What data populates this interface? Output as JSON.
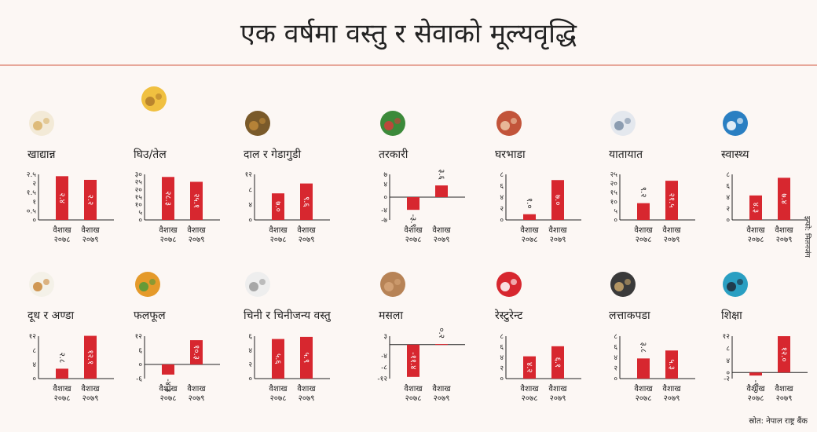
{
  "title": "एक वर्षमा वस्तु र सेवाको मूल्यवृद्धि",
  "source": "स्रोत: नेपाल राष्ट्र बैंक",
  "credit": "इन्फो: मिलनजंग",
  "colors": {
    "bar": "#d7272f",
    "axis": "#222222",
    "panel": "#fcf7f4",
    "rule": "#e7a79a"
  },
  "chart_data": [
    {
      "type": "bar",
      "title": "खाद्यान्न",
      "icon": "grain-icon",
      "categories": [
        [
          "वैशाख",
          "२०७८"
        ],
        [
          "वैशाख",
          "२०७९"
        ]
      ],
      "values": [
        2.4,
        2.2
      ],
      "labels": [
        "२.४",
        "२.२"
      ],
      "ylim": [
        0,
        2.5
      ],
      "ticks": [
        [
          "२.५",
          2.5
        ],
        [
          "२",
          2
        ],
        [
          "१.५",
          1.5
        ],
        [
          "१",
          1
        ],
        [
          "०.५",
          0.5
        ],
        [
          "०",
          0
        ]
      ]
    },
    {
      "type": "bar",
      "title": "घिउ/तेल",
      "icon": "oil-ghee-icon",
      "categories": [
        [
          "वैशाख",
          "२०७८"
        ],
        [
          "वैशाख",
          "२०७९"
        ]
      ],
      "values": [
        28.3,
        25.1
      ],
      "labels": [
        "२८.३",
        "२५.१"
      ],
      "ylim": [
        0,
        30
      ],
      "ticks": [
        [
          "३०",
          30
        ],
        [
          "२५",
          25
        ],
        [
          "२०",
          20
        ],
        [
          "१५",
          15
        ],
        [
          "१०",
          10
        ],
        [
          "५",
          5
        ],
        [
          "०",
          0
        ]
      ]
    },
    {
      "type": "bar",
      "title": "दाल र गेडागुडी",
      "icon": "lentils-icon",
      "categories": [
        [
          "वैशाख",
          "२०७८"
        ],
        [
          "वैशाख",
          "२०७९"
        ]
      ],
      "values": [
        7.0,
        9.6
      ],
      "labels": [
        "७.०",
        "९.६"
      ],
      "ylim": [
        0,
        12
      ],
      "ticks": [
        [
          "१२",
          12
        ],
        [
          "८",
          8
        ],
        [
          "४",
          4
        ],
        [
          "०",
          0
        ]
      ]
    },
    {
      "type": "bar",
      "title": "तरकारी",
      "icon": "vegetables-icon",
      "categories": [
        [
          "वैशाख",
          "२०७८"
        ],
        [
          "वैशाख",
          "२०७९"
        ]
      ],
      "values": [
        -3.9,
        3.6
      ],
      "labels": [
        "-३.९",
        "३.६"
      ],
      "ylim": [
        -7,
        7
      ],
      "ticks": [
        [
          "७",
          7
        ],
        [
          "४",
          4
        ],
        [
          "०",
          0
        ],
        [
          "-४",
          -4
        ],
        [
          "-७",
          -7
        ]
      ]
    },
    {
      "type": "bar",
      "title": "घरभाडा",
      "icon": "house-icon",
      "categories": [
        [
          "वैशाख",
          "२०७८"
        ],
        [
          "वैशाख",
          "२०७९"
        ]
      ],
      "values": [
        1.0,
        7.0
      ],
      "labels": [
        "१.०",
        "७.०"
      ],
      "ylim": [
        0,
        8
      ],
      "ticks": [
        [
          "८",
          8
        ],
        [
          "६",
          6
        ],
        [
          "४",
          4
        ],
        [
          "२",
          2
        ],
        [
          "०",
          0
        ]
      ]
    },
    {
      "type": "bar",
      "title": "यातायात",
      "icon": "bus-icon",
      "categories": [
        [
          "वैशाख",
          "२०७८"
        ],
        [
          "वैशाख",
          "२०७९"
        ]
      ],
      "values": [
        9.2,
        21.5
      ],
      "labels": [
        "९.२",
        "२१.५"
      ],
      "ylim": [
        0,
        25
      ],
      "ticks": [
        [
          "२५",
          25
        ],
        [
          "२०",
          20
        ],
        [
          "१५",
          15
        ],
        [
          "१०",
          10
        ],
        [
          "५",
          5
        ],
        [
          "०",
          0
        ]
      ]
    },
    {
      "type": "bar",
      "title": "स्वास्थ्य",
      "icon": "health-icon",
      "categories": [
        [
          "वैशाख",
          "२०७८"
        ],
        [
          "वैशाख",
          "२०७९"
        ]
      ],
      "values": [
        4.3,
        7.4
      ],
      "labels": [
        "४.३",
        "७.४"
      ],
      "ylim": [
        0,
        8
      ],
      "ticks": [
        [
          "८",
          8
        ],
        [
          "६",
          6
        ],
        [
          "४",
          4
        ],
        [
          "२",
          2
        ],
        [
          "०",
          0
        ]
      ]
    },
    {
      "type": "bar",
      "title": "दूध र अण्डा",
      "icon": "milk-egg-icon",
      "categories": [
        [
          "वैशाख",
          "२०७८"
        ],
        [
          "वैशाख",
          "२०७९"
        ]
      ],
      "values": [
        2.8,
        12.1
      ],
      "labels": [
        "२.८",
        "१२.१"
      ],
      "ylim": [
        0,
        12
      ],
      "ticks": [
        [
          "१२",
          12
        ],
        [
          "८",
          8
        ],
        [
          "४",
          4
        ],
        [
          "०",
          0
        ]
      ]
    },
    {
      "type": "bar",
      "title": "फलफूल",
      "icon": "fruit-icon",
      "categories": [
        [
          "वैशाख",
          "२०७८"
        ],
        [
          "वैशाख",
          "२०७९"
        ]
      ],
      "values": [
        -4.3,
        10.3
      ],
      "labels": [
        "-४.३",
        "१०.३"
      ],
      "ylim": [
        -6,
        12
      ],
      "ticks": [
        [
          "१२",
          12
        ],
        [
          "६",
          6
        ],
        [
          "०",
          0
        ],
        [
          "-६",
          -6
        ]
      ]
    },
    {
      "type": "bar",
      "title": "चिनी र चिनीजन्य वस्तु",
      "icon": "sugar-icon",
      "categories": [
        [
          "वैशाख",
          "२०७८"
        ],
        [
          "वैशाख",
          "२०७९"
        ]
      ],
      "values": [
        5.6,
        5.9
      ],
      "labels": [
        "५.६",
        "५.९"
      ],
      "ylim": [
        0,
        6
      ],
      "ticks": [
        [
          "६",
          6
        ],
        [
          "४",
          4
        ],
        [
          "२",
          2
        ],
        [
          "०",
          0
        ]
      ]
    },
    {
      "type": "bar",
      "title": "मसला",
      "icon": "spice-icon",
      "categories": [
        [
          "वैशाख",
          "२०७८"
        ],
        [
          "वैशाख",
          "२०७९"
        ]
      ],
      "values": [
        -11.4,
        0.2
      ],
      "labels": [
        "-११.४",
        "०.२"
      ],
      "ylim": [
        -12,
        3
      ],
      "ticks": [
        [
          "३",
          3
        ],
        [
          "-४",
          -4
        ],
        [
          "-८",
          -8
        ],
        [
          "-१२",
          -12
        ]
      ]
    },
    {
      "type": "bar",
      "title": "रेस्टुरेन्ट",
      "icon": "restaurant-icon",
      "categories": [
        [
          "वैशाख",
          "२०७८"
        ],
        [
          "वैशाख",
          "२०७९"
        ]
      ],
      "values": [
        4.2,
        6.1
      ],
      "labels": [
        "४.२",
        "६.१"
      ],
      "ylim": [
        0,
        8
      ],
      "ticks": [
        [
          "८",
          8
        ],
        [
          "६",
          6
        ],
        [
          "४",
          4
        ],
        [
          "२",
          2
        ],
        [
          "०",
          0
        ]
      ]
    },
    {
      "type": "bar",
      "title": "लत्ताकपडा",
      "icon": "clothes-icon",
      "categories": [
        [
          "वैशाख",
          "२०७८"
        ],
        [
          "वैशाख",
          "२०७९"
        ]
      ],
      "values": [
        3.8,
        5.3
      ],
      "labels": [
        "३.८",
        "५.३"
      ],
      "ylim": [
        0,
        8
      ],
      "ticks": [
        [
          "८",
          8
        ],
        [
          "६",
          6
        ],
        [
          "४",
          4
        ],
        [
          "२",
          2
        ],
        [
          "०",
          0
        ]
      ]
    },
    {
      "type": "bar",
      "title": "शिक्षा",
      "icon": "education-icon",
      "categories": [
        [
          "वैशाख",
          "२०७८"
        ],
        [
          "वैशाख",
          "२०७९"
        ]
      ],
      "values": [
        -1.0,
        12.0
      ],
      "labels": [
        "-१.०",
        "१२.०"
      ],
      "ylim": [
        -2,
        12
      ],
      "ticks": [
        [
          "१२",
          12
        ],
        [
          "८",
          8
        ],
        [
          "४",
          4
        ],
        [
          "०",
          0
        ],
        [
          "-२",
          -2
        ]
      ]
    }
  ]
}
